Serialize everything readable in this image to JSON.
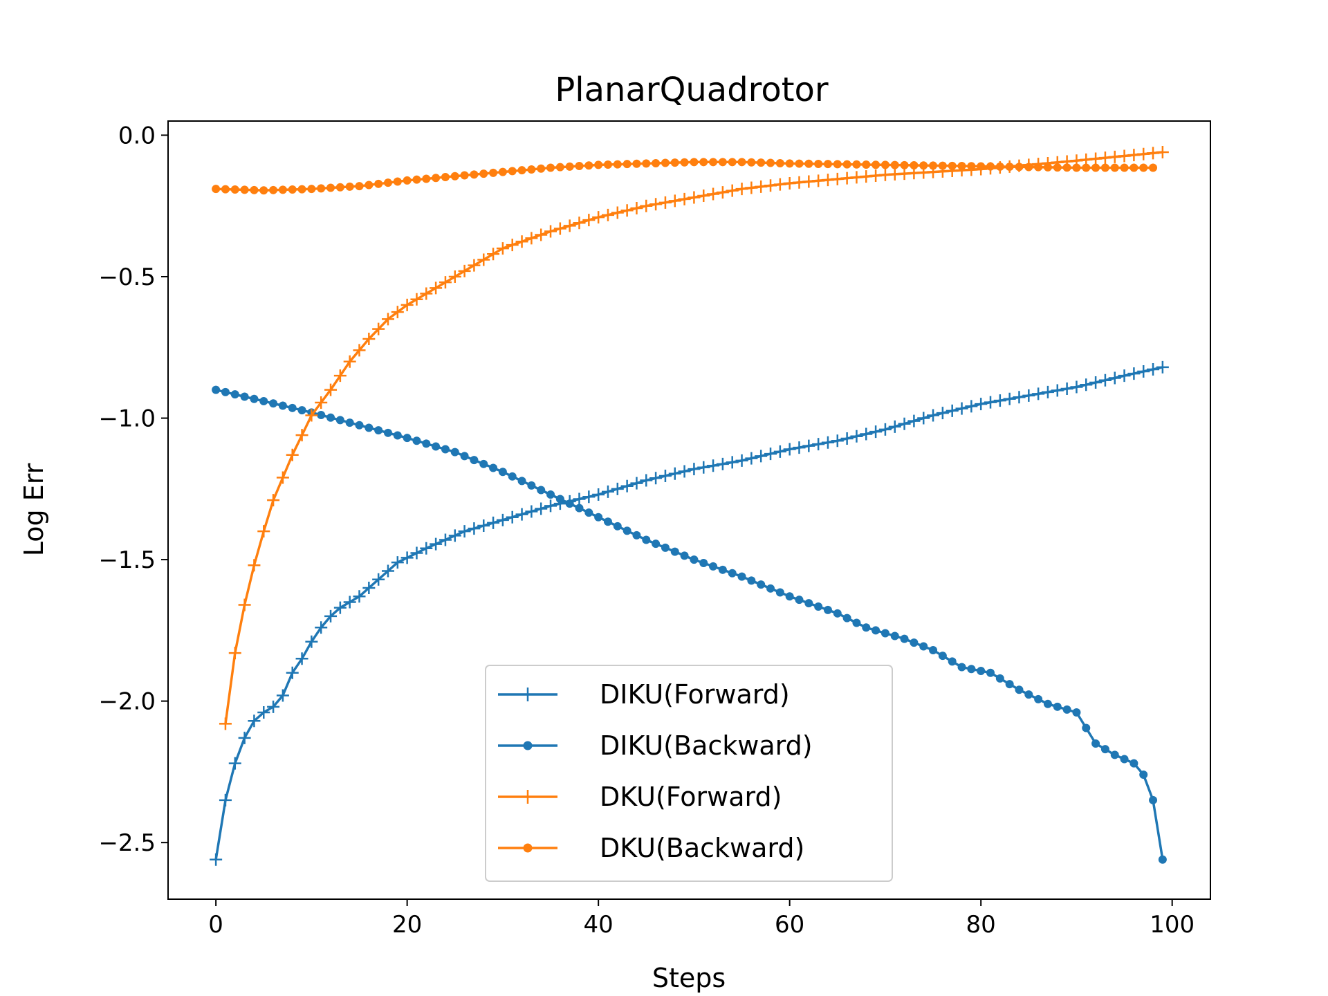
{
  "chart_data": {
    "type": "line",
    "title": "PlanarQuadrotor",
    "xlabel": "Steps",
    "ylabel": "Log Err",
    "xlim": [
      -5,
      104
    ],
    "ylim": [
      -2.7,
      0.05
    ],
    "xticks": [
      0,
      20,
      40,
      60,
      80,
      100
    ],
    "xtick_labels": [
      "0",
      "20",
      "40",
      "60",
      "80",
      "100"
    ],
    "yticks": [
      0.0,
      -0.5,
      -1.0,
      -1.5,
      -2.0,
      -2.5
    ],
    "ytick_labels": [
      "0.0",
      "−0.5",
      "−1.0",
      "−1.5",
      "−2.0",
      "−2.5"
    ],
    "grid": false,
    "legend_position": "lower-center",
    "series": [
      {
        "name": "DIKU(Forward)",
        "color": "#1f77b4",
        "marker": "plus",
        "x_start": 0,
        "x_step": 1,
        "anchors": [
          [
            0,
            -2.56
          ],
          [
            1,
            -2.35
          ],
          [
            2,
            -2.22
          ],
          [
            3,
            -2.13
          ],
          [
            4,
            -2.07
          ],
          [
            5,
            -2.04
          ],
          [
            6,
            -2.02
          ],
          [
            7,
            -1.98
          ],
          [
            8,
            -1.9
          ],
          [
            9,
            -1.85
          ],
          [
            10,
            -1.79
          ],
          [
            11,
            -1.74
          ],
          [
            12,
            -1.7
          ],
          [
            13,
            -1.67
          ],
          [
            15,
            -1.63
          ],
          [
            17,
            -1.57
          ],
          [
            19,
            -1.51
          ],
          [
            22,
            -1.46
          ],
          [
            26,
            -1.4
          ],
          [
            30,
            -1.36
          ],
          [
            35,
            -1.31
          ],
          [
            40,
            -1.27
          ],
          [
            45,
            -1.22
          ],
          [
            50,
            -1.18
          ],
          [
            55,
            -1.15
          ],
          [
            60,
            -1.11
          ],
          [
            65,
            -1.08
          ],
          [
            70,
            -1.04
          ],
          [
            75,
            -0.99
          ],
          [
            80,
            -0.95
          ],
          [
            85,
            -0.92
          ],
          [
            90,
            -0.89
          ],
          [
            95,
            -0.85
          ],
          [
            99,
            -0.82
          ]
        ]
      },
      {
        "name": "DIKU(Backward)",
        "color": "#1f77b4",
        "marker": "dot",
        "x_start": 0,
        "x_step": 1,
        "anchors": [
          [
            0,
            -0.9
          ],
          [
            10,
            -0.98
          ],
          [
            20,
            -1.07
          ],
          [
            25,
            -1.12
          ],
          [
            30,
            -1.19
          ],
          [
            35,
            -1.27
          ],
          [
            40,
            -1.35
          ],
          [
            45,
            -1.43
          ],
          [
            50,
            -1.5
          ],
          [
            55,
            -1.56
          ],
          [
            60,
            -1.63
          ],
          [
            65,
            -1.69
          ],
          [
            68,
            -1.74
          ],
          [
            72,
            -1.78
          ],
          [
            75,
            -1.82
          ],
          [
            78,
            -1.88
          ],
          [
            81,
            -1.9
          ],
          [
            84,
            -1.96
          ],
          [
            87,
            -2.01
          ],
          [
            90,
            -2.04
          ],
          [
            92,
            -2.15
          ],
          [
            94,
            -2.19
          ],
          [
            96,
            -2.22
          ],
          [
            97,
            -2.26
          ],
          [
            98,
            -2.35
          ],
          [
            99,
            -2.56
          ]
        ]
      },
      {
        "name": "DKU(Forward)",
        "color": "#ff7f0e",
        "marker": "plus",
        "x_start": 1,
        "x_step": 1,
        "anchors": [
          [
            1,
            -2.08
          ],
          [
            2,
            -1.83
          ],
          [
            3,
            -1.66
          ],
          [
            4,
            -1.52
          ],
          [
            5,
            -1.4
          ],
          [
            6,
            -1.29
          ],
          [
            7,
            -1.21
          ],
          [
            8,
            -1.13
          ],
          [
            9,
            -1.06
          ],
          [
            10,
            -0.99
          ],
          [
            12,
            -0.9
          ],
          [
            14,
            -0.8
          ],
          [
            16,
            -0.72
          ],
          [
            18,
            -0.65
          ],
          [
            20,
            -0.6
          ],
          [
            25,
            -0.5
          ],
          [
            30,
            -0.4
          ],
          [
            35,
            -0.34
          ],
          [
            40,
            -0.29
          ],
          [
            45,
            -0.25
          ],
          [
            50,
            -0.22
          ],
          [
            55,
            -0.19
          ],
          [
            60,
            -0.17
          ],
          [
            70,
            -0.14
          ],
          [
            80,
            -0.12
          ],
          [
            90,
            -0.09
          ],
          [
            99,
            -0.06
          ]
        ]
      },
      {
        "name": "DKU(Backward)",
        "color": "#ff7f0e",
        "marker": "dot",
        "x_start": 0,
        "x_step": 1,
        "anchors": [
          [
            0,
            -0.19
          ],
          [
            5,
            -0.195
          ],
          [
            10,
            -0.19
          ],
          [
            15,
            -0.18
          ],
          [
            20,
            -0.16
          ],
          [
            25,
            -0.145
          ],
          [
            30,
            -0.13
          ],
          [
            35,
            -0.115
          ],
          [
            40,
            -0.105
          ],
          [
            45,
            -0.1
          ],
          [
            50,
            -0.095
          ],
          [
            55,
            -0.095
          ],
          [
            60,
            -0.1
          ],
          [
            70,
            -0.105
          ],
          [
            80,
            -0.11
          ],
          [
            90,
            -0.115
          ],
          [
            98,
            -0.115
          ]
        ]
      }
    ]
  }
}
